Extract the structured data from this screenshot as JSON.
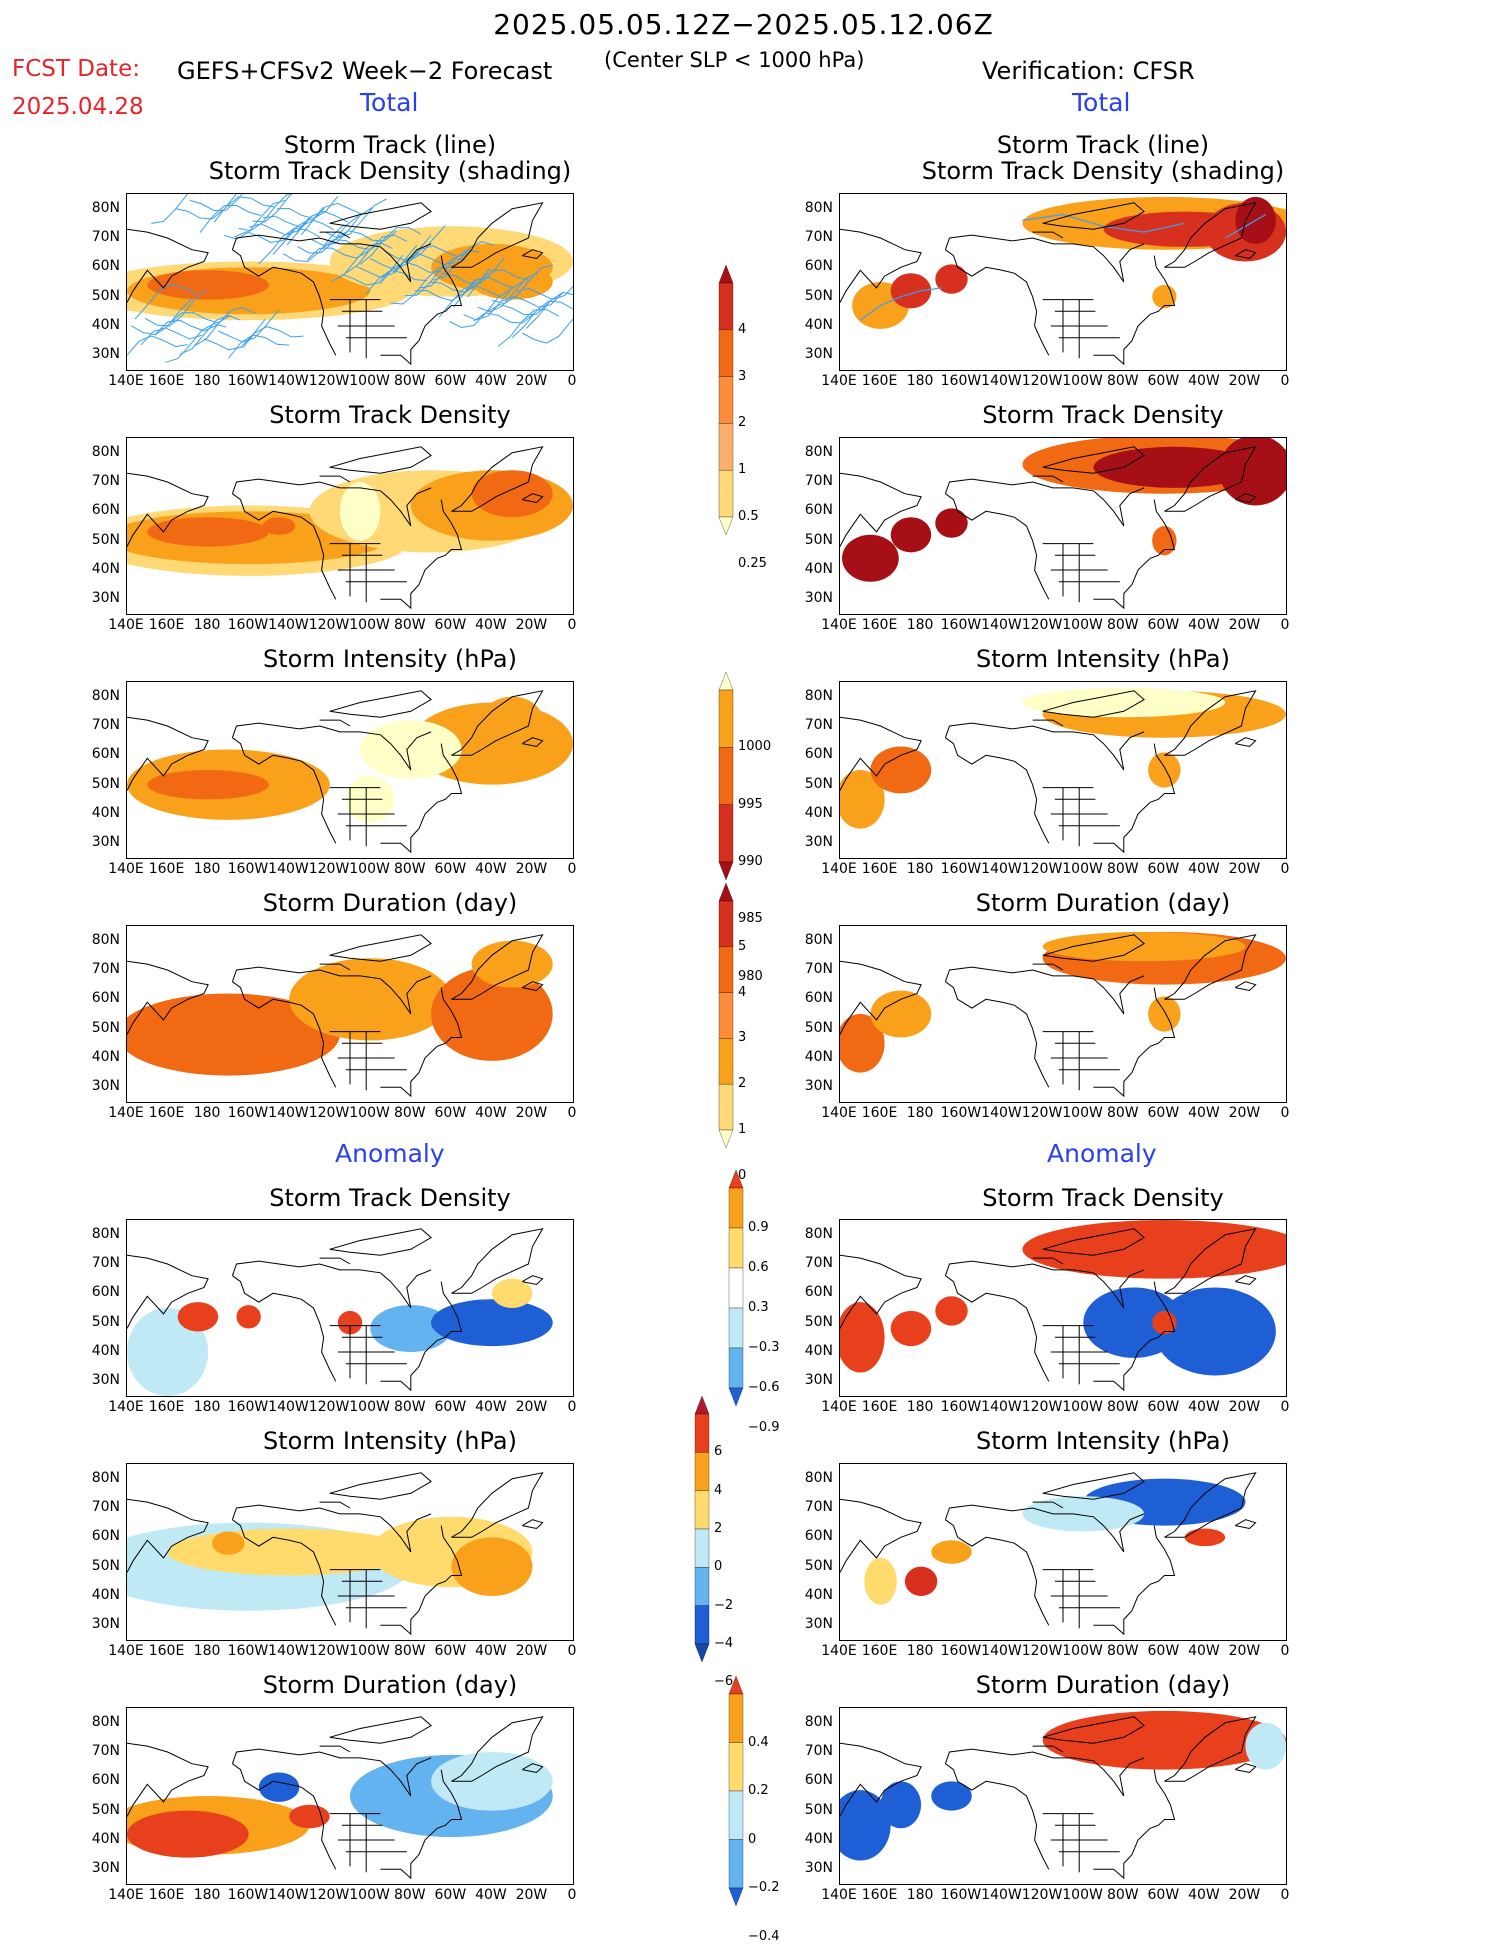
{
  "header": {
    "date_range": "2025.05.05.12Z−2025.05.12.06Z",
    "fcst_date_label": "FCST Date:",
    "fcst_date_value": "2025.04.28",
    "model": "GEFS+CFSv2 Week−2 Forecast",
    "criterion": "(Center SLP < 1000 hPa)",
    "verification": "Verification: CFSR"
  },
  "sections": {
    "total": "Total",
    "anomaly": "Anomaly"
  },
  "panel_titles": {
    "track_line": "Storm Track (line)",
    "track_shading": "Storm Track Density (shading)",
    "density": "Storm Track Density",
    "intensity": "Storm Intensity (hPa)",
    "duration": "Storm Duration (day)"
  },
  "axes": {
    "lat_ticks": [
      "80N",
      "70N",
      "60N",
      "50N",
      "40N",
      "30N"
    ],
    "lon_ticks": [
      "140E",
      "160E",
      "180",
      "160W",
      "140W",
      "120W",
      "100W",
      "80W",
      "60W",
      "40W",
      "20W",
      "0"
    ]
  },
  "colorbars": {
    "density_total": {
      "labels": [
        "4",
        "3",
        "2",
        "1",
        "0.5",
        "0.25"
      ],
      "colors": [
        "#a50f15",
        "#d7301f",
        "#f16913",
        "#fd8d3c",
        "#fdae6b",
        "#fed976",
        "#ffffc8"
      ]
    },
    "intensity_total": {
      "labels": [
        "1000",
        "995",
        "990",
        "985",
        "980"
      ],
      "colors": [
        "#ffffc8",
        "#f9a11b",
        "#f16913",
        "#d7301f",
        "#a50f15"
      ]
    },
    "duration_total": {
      "labels": [
        "5",
        "4",
        "3",
        "2",
        "1",
        "0"
      ],
      "colors": [
        "#a50f15",
        "#d7301f",
        "#f16913",
        "#fd8d3c",
        "#f9a11b",
        "#fed976",
        "#ffffc8"
      ]
    },
    "density_anom": {
      "labels": [
        "0.9",
        "0.6",
        "0.3",
        "−0.3",
        "−0.6",
        "−0.9"
      ],
      "colors": [
        "#e8401c",
        "#f9a11b",
        "#fedb6c",
        "#ffffff",
        "#bfe9f5",
        "#62b3ef",
        "#1f5fd6"
      ]
    },
    "intensity_anom": {
      "labels": [
        "6",
        "4",
        "2",
        "0",
        "−2",
        "−4",
        "−6"
      ],
      "colors": [
        "#b2182b",
        "#e8401c",
        "#f9a11b",
        "#fedb6c",
        "#bfe9f5",
        "#62b3ef",
        "#1f5fd6",
        "#1746a8"
      ]
    },
    "duration_anom": {
      "labels": [
        "0.4",
        "0.2",
        "0",
        "−0.2",
        "−0.4"
      ],
      "colors": [
        "#e8401c",
        "#f9a11b",
        "#fedb6c",
        "#bfe9f5",
        "#62b3ef",
        "#1f5fd6"
      ]
    }
  },
  "chart_data": [
    {
      "type": "heatmap",
      "panel": "forecast_total_track",
      "title": "Storm Track (line) / Storm Track Density (shading)",
      "xlim": [
        "140E",
        "0"
      ],
      "ylim": [
        "25N",
        "85N"
      ],
      "max_region": "North Pacific 45–60N and N Atlantic",
      "level": "0.25–2"
    },
    {
      "type": "heatmap",
      "panel": "verif_total_track",
      "title": "Storm Track (line) / Storm Track Density (shading)",
      "max_region": "Greenland/Arctic and NW Pacific",
      "level": "up to >4"
    },
    {
      "type": "heatmap",
      "panel": "forecast_total_density",
      "title": "Storm Track Density",
      "max_region": "North Pacific near 180",
      "level": "up to 3"
    },
    {
      "type": "heatmap",
      "panel": "verif_total_density",
      "title": "Storm Track Density",
      "max_region": "Arctic, Greenland Sea, NW Pacific",
      "level": "up to >4"
    },
    {
      "type": "heatmap",
      "panel": "forecast_total_intensity",
      "title": "Storm Intensity (hPa)",
      "range": [
        985,
        1000
      ]
    },
    {
      "type": "heatmap",
      "panel": "verif_total_intensity",
      "title": "Storm Intensity (hPa)",
      "range": [
        985,
        1000
      ]
    },
    {
      "type": "heatmap",
      "panel": "forecast_total_duration",
      "title": "Storm Duration (day)",
      "range": [
        1,
        4
      ]
    },
    {
      "type": "heatmap",
      "panel": "verif_total_duration",
      "title": "Storm Duration (day)",
      "range": [
        1,
        4
      ]
    },
    {
      "type": "heatmap",
      "panel": "forecast_anom_density",
      "title": "Storm Track Density",
      "range": [
        -0.9,
        0.9
      ]
    },
    {
      "type": "heatmap",
      "panel": "verif_anom_density",
      "title": "Storm Track Density",
      "range": [
        -0.9,
        0.9
      ]
    },
    {
      "type": "heatmap",
      "panel": "forecast_anom_intensity",
      "title": "Storm Intensity (hPa)",
      "range": [
        -6,
        6
      ]
    },
    {
      "type": "heatmap",
      "panel": "verif_anom_intensity",
      "title": "Storm Intensity (hPa)",
      "range": [
        -6,
        6
      ]
    },
    {
      "type": "heatmap",
      "panel": "forecast_anom_duration",
      "title": "Storm Duration (day)",
      "range": [
        -0.4,
        0.4
      ]
    },
    {
      "type": "heatmap",
      "panel": "verif_anom_duration",
      "title": "Storm Duration (day)",
      "range": [
        -0.4,
        0.4
      ]
    }
  ]
}
